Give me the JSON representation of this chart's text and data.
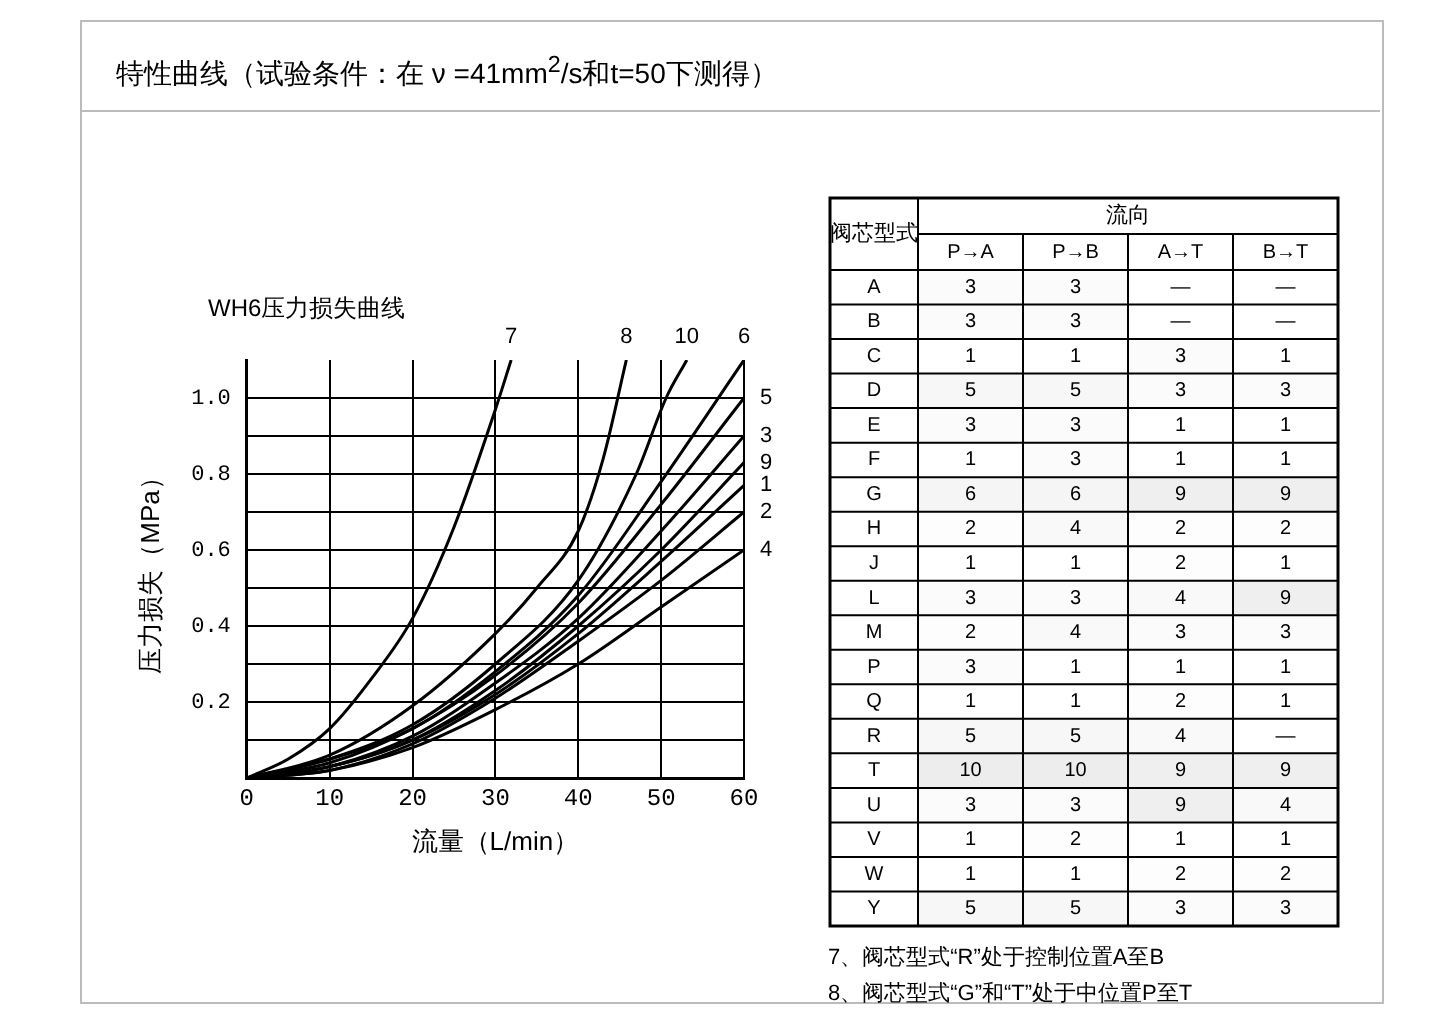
{
  "chart_data": [
    {
      "type": "line",
      "title": "特性曲线（试验条件：在 ν =41mm$^{2}$/s和t=50下测得）",
      "subtitle": "WH6压力损失曲线",
      "xlabel": "流量（L/min）",
      "ylabel": "压力损失（MPa）",
      "xlim": [
        0,
        60
      ],
      "xticks": [
        0,
        10,
        20,
        30,
        40,
        50,
        60
      ],
      "ylim": [
        0,
        1.1
      ],
      "yticks": [
        {
          "value": 0.1,
          "label": null
        },
        {
          "value": 0.2,
          "label": "0.2"
        },
        {
          "value": 0.3,
          "label": null
        },
        {
          "value": 0.4,
          "label": "0.4"
        },
        {
          "value": 0.5,
          "label": null
        },
        {
          "value": 0.6,
          "label": "0.6"
        },
        {
          "value": 0.7,
          "label": null
        },
        {
          "value": 0.8,
          "label": "0.8"
        },
        {
          "value": 0.9,
          "label": null
        },
        {
          "value": 1.0,
          "label": "1.0"
        }
      ],
      "grid": true,
      "legend": false,
      "marker": "none",
      "line_style": "solid",
      "series": [
        {
          "name": "7",
          "color": "#000000",
          "x": [
            0,
            5,
            10,
            15,
            20,
            25,
            30,
            31.9
          ],
          "values": [
            0,
            0.05,
            0.13,
            0.26,
            0.42,
            0.66,
            0.97,
            1.1
          ]
        },
        {
          "name": "8",
          "color": "#000000",
          "x": [
            0,
            10,
            20,
            30,
            35,
            40,
            43,
            45.8
          ],
          "values": [
            0,
            0.06,
            0.19,
            0.38,
            0.5,
            0.65,
            0.84,
            1.1
          ]
        },
        {
          "name": "10",
          "color": "#000000",
          "x": [
            0,
            10,
            20,
            30,
            40,
            47,
            50.6,
            53.1
          ],
          "values": [
            0,
            0.05,
            0.14,
            0.3,
            0.52,
            0.8,
            1.0,
            1.1
          ]
        },
        {
          "name": "6",
          "color": "#000000",
          "x": [
            0,
            10,
            20,
            30,
            40,
            50,
            60
          ],
          "values": [
            0,
            0.05,
            0.13,
            0.28,
            0.48,
            0.78,
            1.1
          ]
        },
        {
          "name": "5",
          "color": "#000000",
          "x": [
            0,
            10,
            20,
            30,
            40,
            50,
            60
          ],
          "values": [
            0,
            0.04,
            0.13,
            0.27,
            0.46,
            0.72,
            1.0
          ]
        },
        {
          "name": "3",
          "color": "#000000",
          "x": [
            0,
            10,
            20,
            30,
            40,
            50,
            60
          ],
          "values": [
            0,
            0.03,
            0.11,
            0.25,
            0.42,
            0.65,
            0.9
          ]
        },
        {
          "name": "9",
          "color": "#000000",
          "x": [
            0,
            10,
            20,
            30,
            40,
            50,
            60
          ],
          "values": [
            0,
            0.03,
            0.1,
            0.23,
            0.4,
            0.6,
            0.83
          ]
        },
        {
          "name": "1",
          "color": "#000000",
          "x": [
            0,
            10,
            20,
            30,
            40,
            50,
            60
          ],
          "values": [
            0,
            0.03,
            0.1,
            0.22,
            0.38,
            0.57,
            0.77
          ]
        },
        {
          "name": "2",
          "color": "#000000",
          "x": [
            0,
            10,
            20,
            30,
            40,
            50,
            60
          ],
          "values": [
            0,
            0.02,
            0.09,
            0.21,
            0.36,
            0.52,
            0.7
          ]
        },
        {
          "name": "4",
          "color": "#000000",
          "x": [
            0,
            10,
            20,
            30,
            40,
            50,
            60
          ],
          "values": [
            0,
            0.02,
            0.08,
            0.18,
            0.3,
            0.45,
            0.6
          ]
        }
      ]
    },
    {
      "type": "heatmap",
      "xlabel": "流向",
      "ylabel": "阀芯型式",
      "categories": [
        "P→A",
        "P→B",
        "A→T",
        "B→T"
      ],
      "y_categories": [
        "A",
        "B",
        "C",
        "D",
        "E",
        "F",
        "G",
        "H",
        "J",
        "L",
        "M",
        "P",
        "Q",
        "R",
        "T",
        "U",
        "V",
        "W",
        "Y"
      ],
      "cells": [
        [
          3,
          3,
          null,
          null
        ],
        [
          3,
          3,
          null,
          null
        ],
        [
          1,
          1,
          3,
          1
        ],
        [
          5,
          5,
          3,
          3
        ],
        [
          3,
          3,
          1,
          1
        ],
        [
          1,
          3,
          1,
          1
        ],
        [
          6,
          6,
          9,
          9
        ],
        [
          2,
          4,
          2,
          2
        ],
        [
          1,
          1,
          2,
          1
        ],
        [
          3,
          3,
          4,
          9
        ],
        [
          2,
          4,
          3,
          3
        ],
        [
          3,
          1,
          1,
          1
        ],
        [
          1,
          1,
          2,
          1
        ],
        [
          5,
          5,
          4,
          null
        ],
        [
          10,
          10,
          9,
          9
        ],
        [
          3,
          3,
          9,
          4
        ],
        [
          1,
          2,
          1,
          1
        ],
        [
          1,
          1,
          2,
          2
        ],
        [
          5,
          5,
          3,
          3
        ]
      ],
      "cell_labels": [
        [
          "3",
          "3",
          "—",
          "—"
        ],
        [
          "3",
          "3",
          "—",
          "—"
        ],
        [
          "1",
          "1",
          "3",
          "1"
        ],
        [
          "5",
          "5",
          "3",
          "3"
        ],
        [
          "3",
          "3",
          "1",
          "1"
        ],
        [
          "1",
          "3",
          "1",
          "1"
        ],
        [
          "6",
          "6",
          "9",
          "9"
        ],
        [
          "2",
          "4",
          "2",
          "2"
        ],
        [
          "1",
          "1",
          "2",
          "1"
        ],
        [
          "3",
          "3",
          "4",
          "9"
        ],
        [
          "2",
          "4",
          "3",
          "3"
        ],
        [
          "3",
          "1",
          "1",
          "1"
        ],
        [
          "1",
          "1",
          "2",
          "1"
        ],
        [
          "5",
          "5",
          "4",
          "—"
        ],
        [
          "10",
          "10",
          "9",
          "9"
        ],
        [
          "3",
          "3",
          "9",
          "4"
        ],
        [
          "1",
          "2",
          "1",
          "1"
        ],
        [
          "1",
          "1",
          "2",
          "2"
        ],
        [
          "5",
          "5",
          "3",
          "3"
        ]
      ],
      "annotations": [
        "7、阀芯型式“R”处于控制位置A至B",
        "8、阀芯型式“G”和“T”处于中位置P至T"
      ]
    }
  ]
}
